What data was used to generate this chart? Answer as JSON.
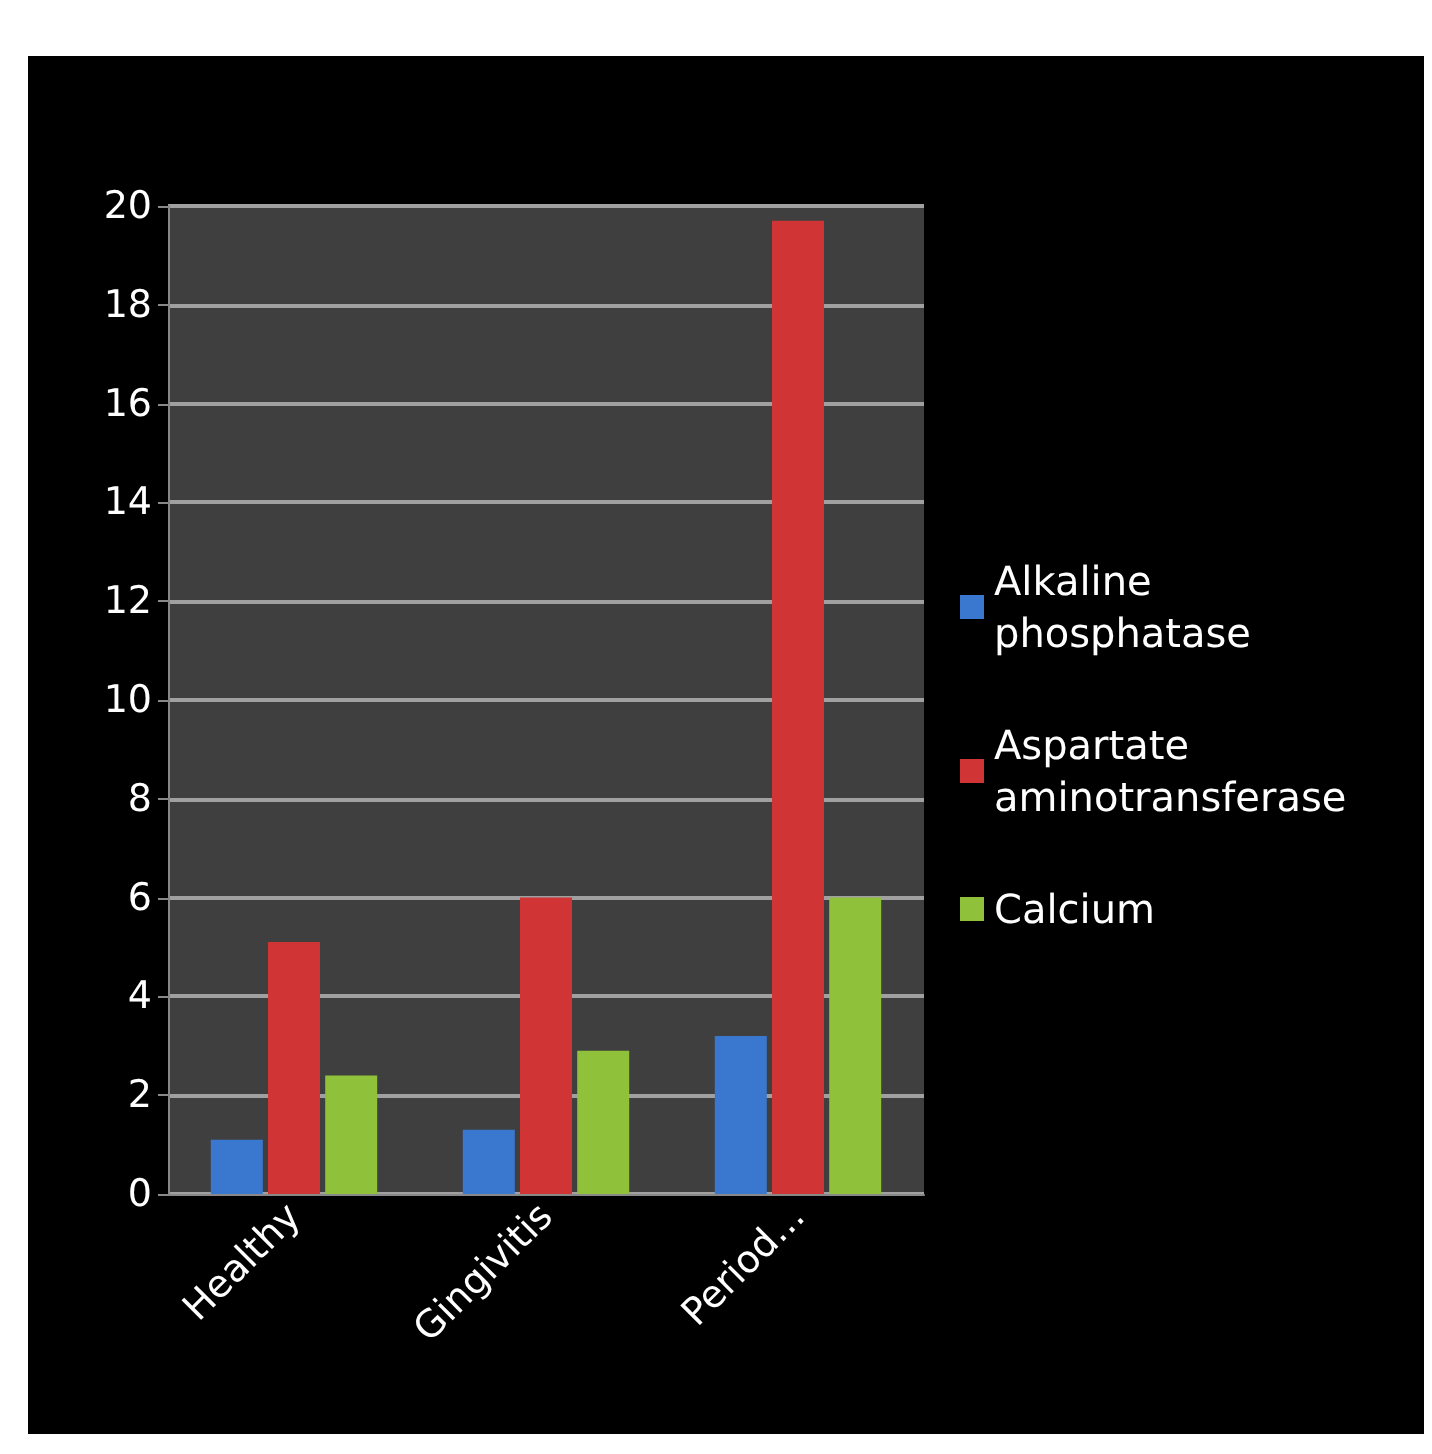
{
  "chart_data": {
    "type": "bar",
    "categories": [
      "Healthy",
      "Gingivitis",
      "Period..."
    ],
    "series": [
      {
        "name": "Alkaline phosphatase",
        "color": "#3a78d0",
        "values": [
          1.1,
          1.3,
          3.2
        ]
      },
      {
        "name": "Aspartate aminotransferase",
        "color": "#d03434",
        "values": [
          5.1,
          6.0,
          19.7
        ]
      },
      {
        "name": "Calcium",
        "color": "#8fc23a",
        "values": [
          2.4,
          2.9,
          6.0
        ]
      }
    ],
    "ylim": [
      0,
      20
    ],
    "yticks": [
      0,
      2,
      4,
      6,
      8,
      10,
      12,
      14,
      16,
      18,
      20
    ],
    "grid": "y",
    "legend": "right"
  }
}
